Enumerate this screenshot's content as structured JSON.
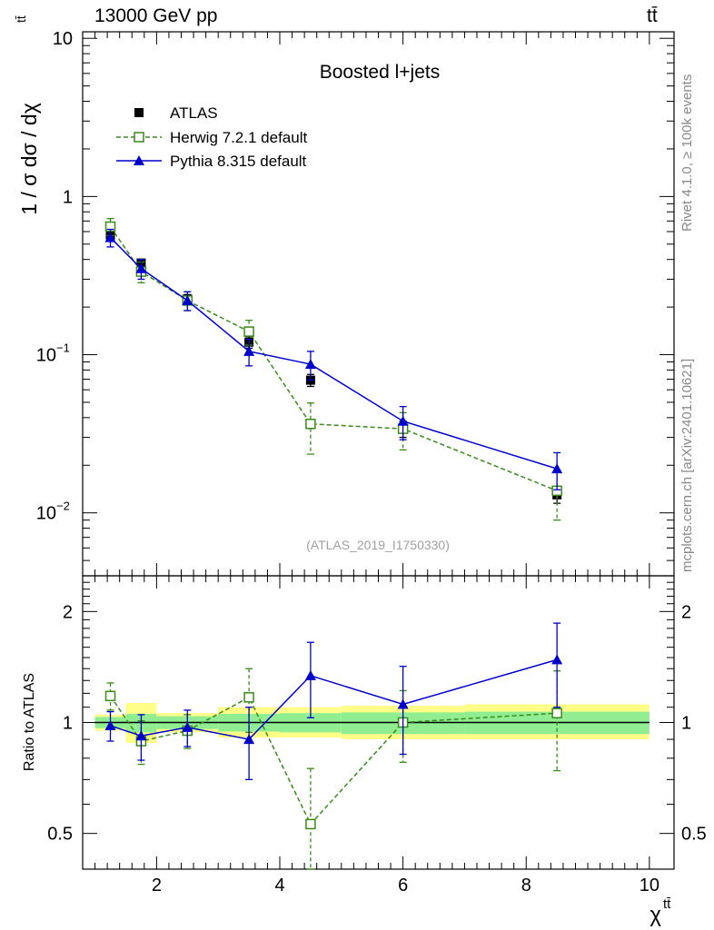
{
  "header": {
    "energy_label": "13000 GeV pp",
    "process_label": "tt̄"
  },
  "side_labels": {
    "rivet": "Rivet 4.1.0, ≥ 100k events",
    "mcplots": "mcplots.cern.ch [arXiv:2401.10621]"
  },
  "chart_data": {
    "type": "line",
    "title": "Boosted l+jets",
    "analysis_id": "(ATLAS_2019_I1750330)",
    "xlabel": "χ",
    "xlabel_sup": "tt̄",
    "ylabel_main": "1 / σ dσ / dχ",
    "ylabel_main_sup": "tt̄",
    "ylabel_ratio": "Ratio to ATLAS",
    "xlim": [
      0.8,
      10.4
    ],
    "ylim_main": [
      0.004,
      11
    ],
    "ylim_ratio": [
      0.4,
      2.5
    ],
    "x_ticks": [
      {
        "value": 2,
        "label": "2"
      },
      {
        "value": 4,
        "label": "4"
      },
      {
        "value": 6,
        "label": "6"
      },
      {
        "value": 8,
        "label": "8"
      },
      {
        "value": 10,
        "label": "10"
      }
    ],
    "y_ticks_main": [
      {
        "value": 10,
        "label": "10"
      },
      {
        "value": 1,
        "label": "1"
      },
      {
        "value": 0.1,
        "label": "10",
        "sup": "−1"
      },
      {
        "value": 0.01,
        "label": "10",
        "sup": "−2"
      }
    ],
    "y_ticks_ratio": [
      {
        "value": 2,
        "label": "2"
      },
      {
        "value": 1,
        "label": "1"
      },
      {
        "value": 0.5,
        "label": "0.5"
      }
    ],
    "bins": [
      [
        1,
        1.5
      ],
      [
        1.5,
        2
      ],
      [
        2,
        3
      ],
      [
        3,
        4
      ],
      [
        4,
        5
      ],
      [
        5,
        7
      ],
      [
        7,
        10
      ]
    ],
    "series": [
      {
        "name": "ATLAS",
        "style": "data",
        "color": "#000000",
        "x": [
          1.25,
          1.75,
          2.5,
          3.5,
          4.5,
          6.0,
          8.5
        ],
        "values": [
          0.57,
          0.38,
          0.225,
          0.12,
          0.069,
          0.034,
          0.013
        ],
        "errors": [
          0.03,
          0.02,
          0.015,
          0.01,
          0.006,
          0.004,
          0.0015
        ]
      },
      {
        "name": "Herwig 7.2.1 default",
        "style": "open-square-dashed",
        "color": "#3a8a1a",
        "x": [
          1.25,
          1.75,
          2.5,
          3.5,
          4.5,
          6.0,
          8.5
        ],
        "values": [
          0.645,
          0.335,
          0.22,
          0.14,
          0.0365,
          0.034,
          0.0138
        ],
        "errors": [
          0.08,
          0.05,
          0.03,
          0.025,
          0.013,
          0.009,
          0.0048
        ],
        "ratio": [
          1.18,
          0.89,
          0.95,
          1.17,
          0.53,
          1.0,
          1.06
        ],
        "ratio_errors": [
          0.1,
          0.12,
          0.1,
          0.23,
          0.22,
          0.22,
          0.32
        ]
      },
      {
        "name": "Pythia 8.315 default",
        "style": "filled-triangle-solid",
        "color": "#0000cc",
        "x": [
          1.25,
          1.75,
          2.5,
          3.5,
          4.5,
          6.0,
          8.5
        ],
        "values": [
          0.55,
          0.35,
          0.22,
          0.105,
          0.087,
          0.038,
          0.019
        ],
        "errors": [
          0.07,
          0.05,
          0.03,
          0.02,
          0.018,
          0.009,
          0.005
        ],
        "ratio": [
          0.98,
          0.92,
          0.97,
          0.9,
          1.34,
          1.12,
          1.48
        ],
        "ratio_errors": [
          0.09,
          0.13,
          0.11,
          0.2,
          0.31,
          0.3,
          0.38
        ]
      }
    ],
    "uncertainty_bands": {
      "inner_color": "#90ee90",
      "outer_color": "#ffff88",
      "inner": [
        [
          0.965,
          1.035
        ],
        [
          0.94,
          1.055
        ],
        [
          0.96,
          1.04
        ],
        [
          0.945,
          1.055
        ],
        [
          0.94,
          1.06
        ],
        [
          0.93,
          1.065
        ],
        [
          0.93,
          1.07
        ]
      ],
      "outer": [
        [
          0.95,
          1.05
        ],
        [
          0.88,
          1.13
        ],
        [
          0.94,
          1.06
        ],
        [
          0.91,
          1.1
        ],
        [
          0.91,
          1.1
        ],
        [
          0.9,
          1.11
        ],
        [
          0.9,
          1.12
        ]
      ]
    },
    "legend_position": "top-left"
  }
}
